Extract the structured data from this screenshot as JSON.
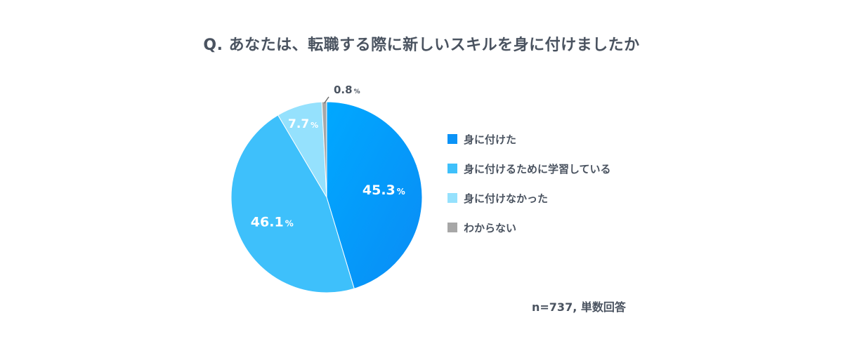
{
  "chart_data": {
    "type": "pie",
    "title": "Q. あなたは、転職する際に新しいスキルを身に付けましたか",
    "categories": [
      "身に付けた",
      "身に付けるために学習している",
      "身に付けなかった",
      "わからない"
    ],
    "values": [
      45.3,
      46.1,
      7.7,
      0.8
    ],
    "value_labels": [
      "45.3",
      "46.1",
      "7.7",
      "0.8"
    ],
    "unit": "%",
    "colors": [
      "#0a93f7",
      "#3ec0fb",
      "#95e1fd",
      "#a7a7a7"
    ],
    "legend_position": "right",
    "note": "n=737, 単数回答"
  }
}
